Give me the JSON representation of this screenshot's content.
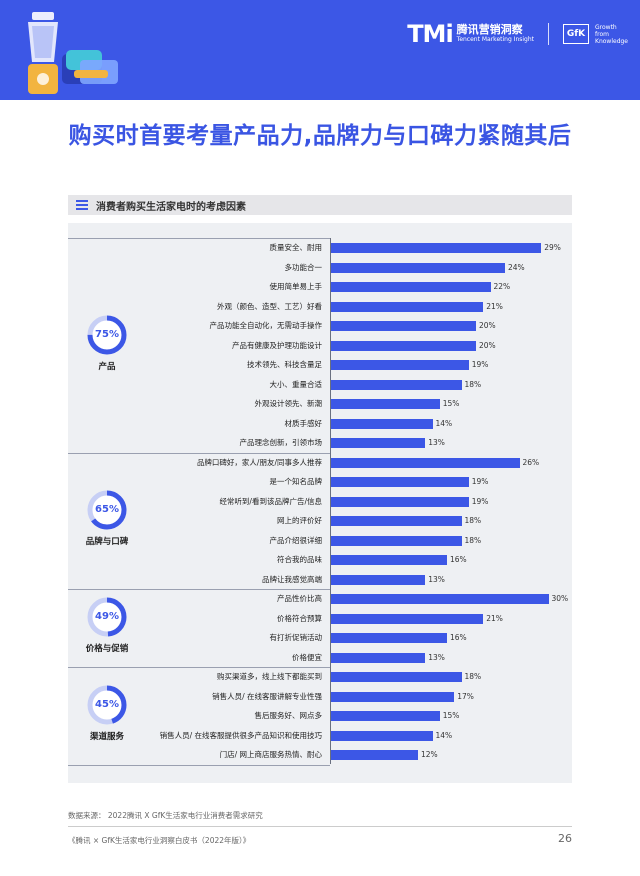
{
  "header": {
    "tmi_logo": "TMi",
    "tmi_cn": "腾讯营销洞察",
    "tmi_en": "Tencent Marketing Insight",
    "gfk_logo": "GfK",
    "gfk_tagline_1": "Growth",
    "gfk_tagline_2": "from",
    "gfk_tagline_3": "Knowledge"
  },
  "headline": "购买时首要考量产品力,品牌力与口碑力紧随其后",
  "section_title": "消费者购买生活家电时的考虑因素",
  "colors": {
    "accent": "#3c57e6",
    "ring_track": "#c7cff5",
    "panel": "#eef0f3"
  },
  "chart_data": {
    "type": "bar",
    "orientation": "horizontal",
    "title": "消费者购买生活家电时的考虑因素",
    "value_unit": "%",
    "groups": [
      {
        "name": "产品",
        "share": 75,
        "share_label": "75%"
      },
      {
        "name": "品牌与口碑",
        "share": 65,
        "share_label": "65%"
      },
      {
        "name": "价格与促销",
        "share": 49,
        "share_label": "49%"
      },
      {
        "name": "渠道服务",
        "share": 45,
        "share_label": "45%"
      }
    ],
    "categories": [
      "质量安全、耐用",
      "多功能合一",
      "使用简单易上手",
      "外观（颜色、造型、工艺）好看",
      "产品功能全自动化，无需动手操作",
      "产品有健康及护理功能设计",
      "技术领先、科技含量足",
      "大小、重量合适",
      "外观设计领先、新潮",
      "材质手感好",
      "产品理念创新，引领市场",
      "品牌口碑好，家人/朋友/同事多人推荐",
      "是一个知名品牌",
      "经常听到/看到该品牌广告/信息",
      "网上的评价好",
      "产品介绍很详细",
      "符合我的品味",
      "品牌让我感觉高端",
      "产品性价比高",
      "价格符合预算",
      "有打折促销活动",
      "价格便宜",
      "购买渠道多，线上线下都能买到",
      "销售人员/ 在线客服讲解专业性强",
      "售后服务好、网点多",
      "销售人员/ 在线客服提供很多产品知识和使用技巧",
      "门店/ 网上商店服务热情、耐心"
    ],
    "values": [
      29,
      24,
      22,
      21,
      20,
      20,
      19,
      18,
      15,
      14,
      13,
      26,
      19,
      19,
      18,
      18,
      16,
      13,
      30,
      21,
      16,
      13,
      18,
      17,
      15,
      14,
      12
    ],
    "value_labels": [
      "29%",
      "24%",
      "22%",
      "21%",
      "20%",
      "20%",
      "19%",
      "18%",
      "15%",
      "14%",
      "13%",
      "26%",
      "19%",
      "19%",
      "18%",
      "18%",
      "16%",
      "13%",
      "30%",
      "21%",
      "16%",
      "13%",
      "18%",
      "17%",
      "15%",
      "14%",
      "12%"
    ],
    "row_group": [
      0,
      0,
      0,
      0,
      0,
      0,
      0,
      0,
      0,
      0,
      0,
      1,
      1,
      1,
      1,
      1,
      1,
      1,
      2,
      2,
      2,
      2,
      3,
      3,
      3,
      3,
      3
    ],
    "xlim": [
      0,
      30
    ]
  },
  "footer": {
    "source": "数据来源： 2022腾讯 X GfK生活家电行业消费者需求研究",
    "report": "《腾讯 × GfK生活家电行业洞察白皮书（2022年版）》",
    "page_number": "26"
  }
}
